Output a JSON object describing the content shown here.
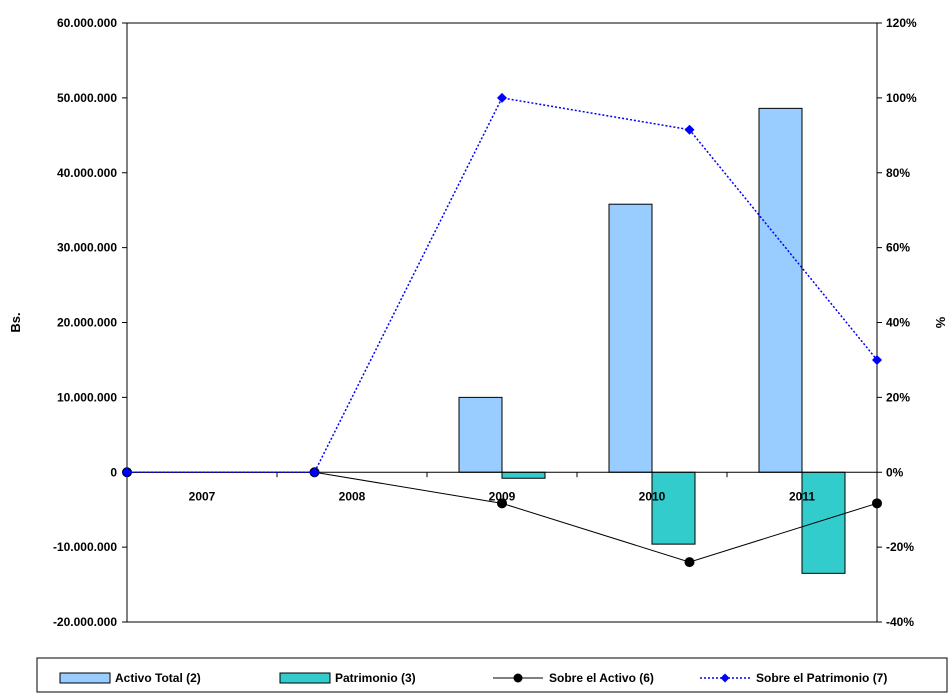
{
  "chart_data": {
    "type": "bar",
    "categories": [
      "2007",
      "2008",
      "2009",
      "2010",
      "2011"
    ],
    "y_left": {
      "label": "Bs.",
      "lim": [
        -20000000,
        60000000
      ],
      "ticks": [
        "60.000.000",
        "50.000.000",
        "40.000.000",
        "30.000.000",
        "20.000.000",
        "10.000.000",
        "0",
        "-10.000.000",
        "-20.000.000"
      ],
      "tick_values": [
        60000000,
        50000000,
        40000000,
        30000000,
        20000000,
        10000000,
        0,
        -10000000,
        -20000000
      ]
    },
    "y_right": {
      "label": "%",
      "lim": [
        -40,
        120
      ],
      "ticks": [
        "120%",
        "100%",
        "80%",
        "60%",
        "40%",
        "20%",
        "0%",
        "-20%",
        "-40%"
      ],
      "tick_values": [
        120,
        100,
        80,
        60,
        40,
        20,
        0,
        -20,
        -40
      ]
    },
    "series": [
      {
        "name": "Activo Total (2)",
        "kind": "bar",
        "axis": "left",
        "color": "#99ccff",
        "values": [
          0,
          0,
          10000000,
          35800000,
          48600000
        ]
      },
      {
        "name": "Patrimonio (3)",
        "kind": "bar",
        "axis": "left",
        "color": "#33cccc",
        "values": [
          0,
          0,
          -800000,
          -9600000,
          -13500000
        ]
      },
      {
        "name": "Sobre el Activo (6)",
        "kind": "line",
        "axis": "right",
        "color": "#000000",
        "marker": "circle",
        "values": [
          0,
          0,
          -8.3,
          -24,
          -8.3
        ]
      },
      {
        "name": "Sobre el Patrimonio (7)",
        "kind": "line",
        "axis": "right",
        "color": "#0000ff",
        "marker": "diamond",
        "dashed": true,
        "values": [
          0,
          0,
          100,
          91.5,
          30
        ]
      }
    ],
    "grid": false,
    "legend_position": "bottom"
  }
}
